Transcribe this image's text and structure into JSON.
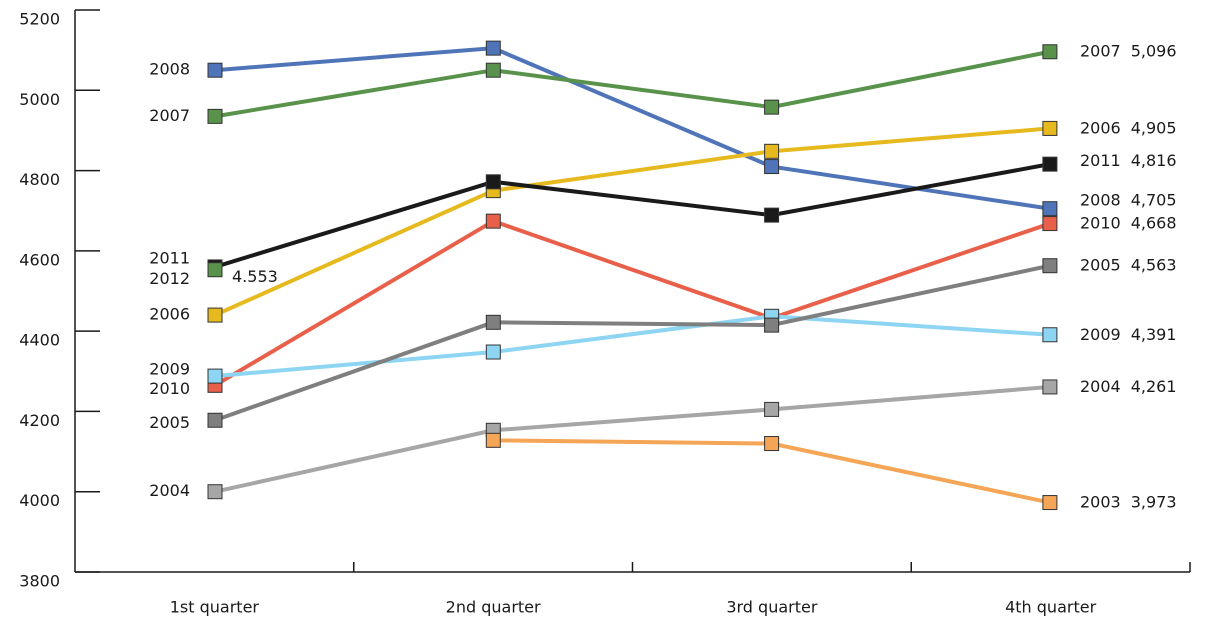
{
  "chart_data": {
    "type": "line",
    "categories": [
      "1st quarter",
      "2nd quarter",
      "3rd quarter",
      "4th quarter"
    ],
    "ylim": [
      3800,
      5200
    ],
    "yticks": [
      3800,
      4000,
      4200,
      4400,
      4600,
      4800,
      5000,
      5200
    ],
    "series": [
      {
        "name": "2008",
        "color": "#4f74b8",
        "values": [
          5050,
          5105,
          4810,
          4705
        ],
        "value_labels": [
          null,
          null,
          null,
          "4,705"
        ]
      },
      {
        "name": "2007",
        "color": "#59934b",
        "values": [
          4935,
          5050,
          4958,
          5096
        ],
        "value_labels": [
          null,
          null,
          null,
          "5,096"
        ]
      },
      {
        "name": "2006",
        "color": "#e6b91e",
        "values": [
          4440,
          4750,
          4848,
          4905
        ],
        "value_labels": [
          null,
          null,
          null,
          "4,905"
        ]
      },
      {
        "name": "2011",
        "color": "#1a1a1a",
        "values": [
          4560,
          4772,
          4689,
          4816
        ],
        "value_labels": [
          null,
          null,
          null,
          "4,816"
        ]
      },
      {
        "name": "2012",
        "color": "#59934b",
        "values": [
          4553,
          null,
          null,
          null
        ],
        "value_labels": [
          "4.553",
          null,
          null,
          null
        ]
      },
      {
        "name": "2010",
        "color": "#e8604a",
        "values": [
          4265,
          4674,
          4432,
          4668
        ],
        "value_labels": [
          null,
          null,
          null,
          "4,668"
        ]
      },
      {
        "name": "2009",
        "color": "#8dd5f2",
        "values": [
          4288,
          4348,
          4437,
          4391
        ],
        "value_labels": [
          null,
          null,
          null,
          "4,391"
        ]
      },
      {
        "name": "2005",
        "color": "#7f7f7f",
        "values": [
          4178,
          4422,
          4415,
          4563
        ],
        "value_labels": [
          null,
          null,
          null,
          "4,563"
        ]
      },
      {
        "name": "2004",
        "color": "#a6a6a6",
        "values": [
          4000,
          4153,
          4205,
          4261
        ],
        "value_labels": [
          null,
          null,
          null,
          "4,261"
        ]
      },
      {
        "name": "2003",
        "color": "#f4a556",
        "values": [
          null,
          4128,
          4120,
          3973
        ],
        "value_labels": [
          null,
          null,
          null,
          "3,973"
        ]
      }
    ]
  }
}
